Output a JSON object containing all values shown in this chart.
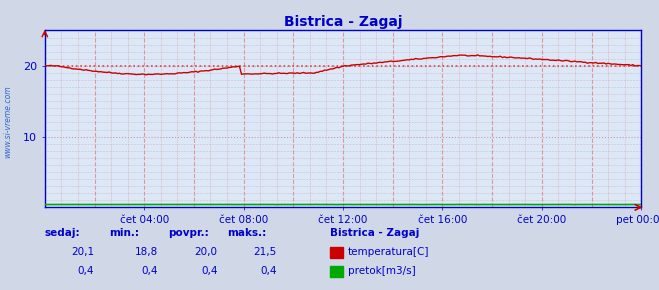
{
  "title": "Bistrica - Zagaj",
  "title_color": "#0000cc",
  "bg_color": "#d0d8e8",
  "plot_bg_color": "#dce8f8",
  "x_ticks_labels": [
    "čet 04:00",
    "čet 08:00",
    "čet 12:00",
    "čet 16:00",
    "čet 20:00",
    "pet 00:00"
  ],
  "x_ticks_pos": [
    48,
    96,
    144,
    192,
    240,
    288
  ],
  "yticks": [
    10,
    20
  ],
  "ylim": [
    0,
    25
  ],
  "xlim": [
    0,
    288
  ],
  "avg_line_y": 20.0,
  "watermark": "www.si-vreme.com",
  "watermark_color": "#3366cc",
  "legend_title": "Bistrica - Zagaj",
  "legend_color": "#0000cc",
  "legend_items": [
    {
      "label": "temperatura[C]",
      "color": "#cc0000"
    },
    {
      "label": "pretok[m3/s]",
      "color": "#00aa00"
    }
  ],
  "table_headers": [
    "sedaj:",
    "min.:",
    "povpr.:",
    "maks.:"
  ],
  "table_row1": [
    "20,1",
    "18,8",
    "20,0",
    "21,5"
  ],
  "table_row2": [
    "0,4",
    "0,4",
    "0,4",
    "0,4"
  ],
  "table_color": "#0000cc",
  "grid_color_v": "#dd9999",
  "grid_color_h": "#cc9999",
  "temp_line_color": "#cc0000",
  "flow_line_color": "#00aa00",
  "axis_color": "#0000cc",
  "spine_color": "#0000cc"
}
